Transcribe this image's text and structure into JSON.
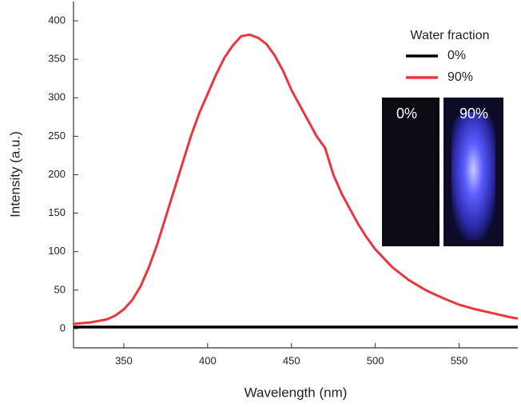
{
  "chart_data": {
    "type": "line",
    "x_label": "Wavelength (nm)",
    "y_label": "Intensity (a.u.)",
    "xlim": [
      320,
      585
    ],
    "ylim": [
      -25,
      425
    ],
    "xticks": [
      350,
      400,
      450,
      500,
      550
    ],
    "yticks": [
      0,
      50,
      100,
      150,
      200,
      250,
      300,
      350,
      400
    ],
    "legend_title": "Water fraction",
    "legend_position": "upper right",
    "inset_labels": [
      "0%",
      "90%"
    ],
    "series": [
      {
        "name": "0%",
        "color": "#000000",
        "x": [
          320,
          585
        ],
        "values": [
          2,
          2
        ]
      },
      {
        "name": "90%",
        "color": "#e8373f",
        "x": [
          320,
          330,
          340,
          345,
          350,
          355,
          360,
          365,
          370,
          375,
          380,
          385,
          390,
          395,
          400,
          405,
          410,
          415,
          420,
          425,
          430,
          435,
          440,
          445,
          450,
          455,
          460,
          465,
          470,
          475,
          480,
          485,
          490,
          495,
          500,
          510,
          520,
          530,
          540,
          550,
          560,
          570,
          580,
          585
        ],
        "values": [
          6,
          8,
          12,
          17,
          25,
          37,
          55,
          80,
          110,
          145,
          180,
          215,
          250,
          280,
          305,
          330,
          352,
          368,
          380,
          382,
          378,
          370,
          355,
          335,
          310,
          290,
          270,
          250,
          235,
          200,
          175,
          155,
          135,
          118,
          103,
          80,
          63,
          50,
          40,
          31,
          25,
          20,
          15,
          13
        ]
      }
    ]
  }
}
